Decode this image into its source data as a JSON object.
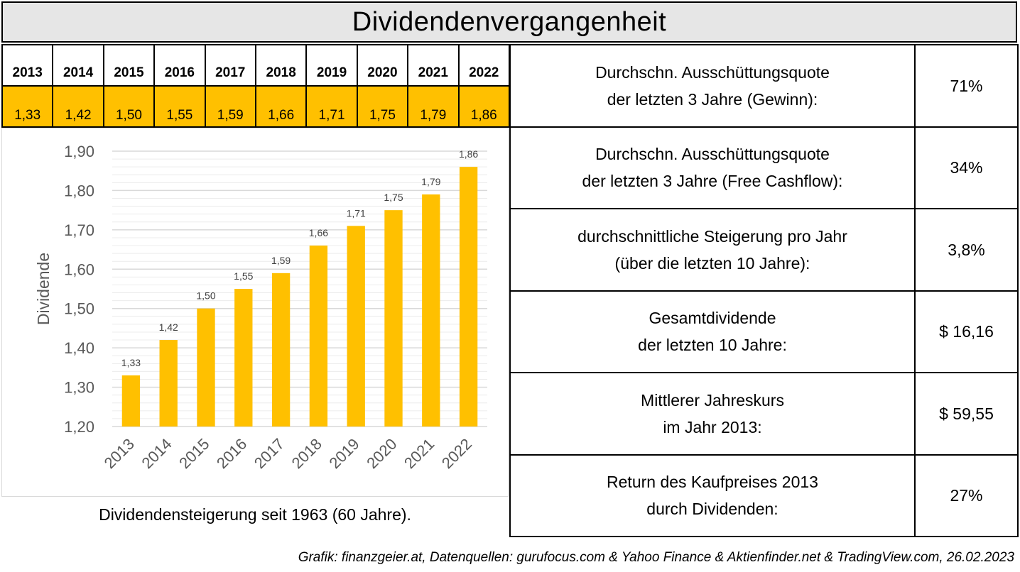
{
  "title": "Dividendenvergangenheit",
  "year_row": {
    "years": [
      "2013",
      "2014",
      "2015",
      "2016",
      "2017",
      "2018",
      "2019",
      "2020",
      "2021",
      "2022"
    ],
    "values": [
      "1,33",
      "1,42",
      "1,50",
      "1,55",
      "1,59",
      "1,66",
      "1,71",
      "1,75",
      "1,79",
      "1,86"
    ]
  },
  "stats": [
    {
      "line1": "Durchschn. Ausschüttungsquote",
      "line2": "der letzten 3 Jahre (Gewinn):",
      "value": "71%"
    },
    {
      "line1": "Durchschn. Ausschüttungsquote",
      "line2": "der letzten 3 Jahre (Free Cashflow):",
      "value": "34%"
    },
    {
      "line1": "durchschnittliche Steigerung pro Jahr",
      "line2": "(über die letzten 10 Jahre):",
      "value": "3,8%"
    },
    {
      "line1": "Gesamtdividende",
      "line2": "der letzten 10 Jahre:",
      "value": "$ 16,16"
    },
    {
      "line1": "Mittlerer Jahreskurs",
      "line2": "im Jahr 2013:",
      "value": "$ 59,55"
    },
    {
      "line1": "Return des Kaufpreises 2013",
      "line2": "durch Dividenden:",
      "value": "27%"
    }
  ],
  "caption": "Dividendensteigerung seit 1963 (60 Jahre).",
  "footer": "Grafik: finanzgeier.at, Datenquellen: gurufocus.com & Yahoo Finance & Aktienfinder.net & TradingView.com, 26.02.2023",
  "colors": {
    "bar": "#ffc000",
    "grid": "#d9d9d9",
    "axis_text": "#595959"
  },
  "chart_data": {
    "type": "bar",
    "categories": [
      "2013",
      "2014",
      "2015",
      "2016",
      "2017",
      "2018",
      "2019",
      "2020",
      "2021",
      "2022"
    ],
    "values": [
      1.33,
      1.42,
      1.5,
      1.55,
      1.59,
      1.66,
      1.71,
      1.75,
      1.79,
      1.86
    ],
    "data_labels": [
      "1,33",
      "1,42",
      "1,50",
      "1,55",
      "1,59",
      "1,66",
      "1,71",
      "1,75",
      "1,79",
      "1,86"
    ],
    "title": "",
    "xlabel": "",
    "ylabel": "Dividende",
    "ylim": [
      1.2,
      1.9
    ],
    "yticks": [
      1.2,
      1.3,
      1.4,
      1.5,
      1.6,
      1.7,
      1.8,
      1.9
    ],
    "ytick_labels": [
      "1,20",
      "1,30",
      "1,40",
      "1,50",
      "1,60",
      "1,70",
      "1,80",
      "1,90"
    ],
    "grid": true,
    "legend": false
  }
}
